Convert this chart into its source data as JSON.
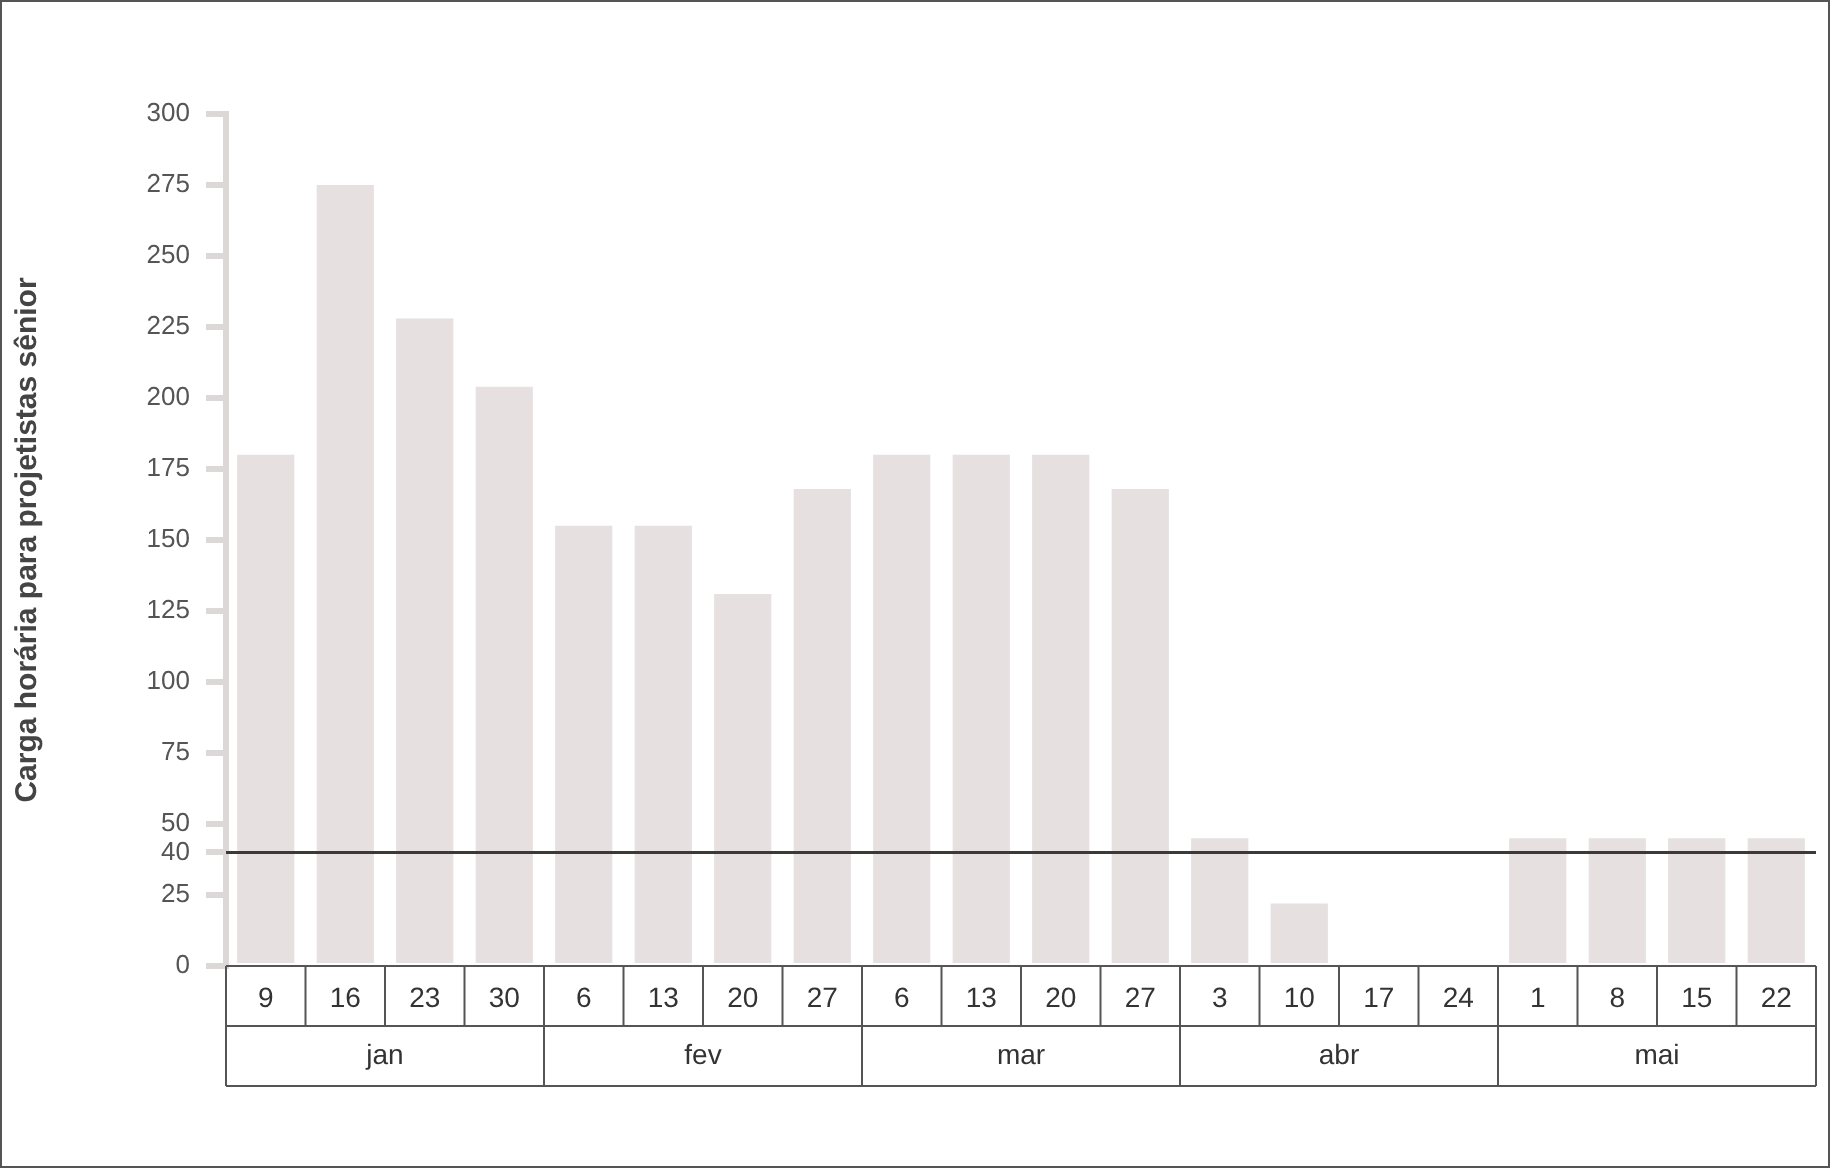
{
  "chart_data": {
    "type": "bar",
    "ylabel": "Carga horária para projetistas sênior",
    "categories": [
      "9",
      "16",
      "23",
      "30",
      "6",
      "13",
      "20",
      "27",
      "6",
      "13",
      "20",
      "27",
      "3",
      "10",
      "17",
      "24",
      "1",
      "8",
      "15",
      "22"
    ],
    "values": [
      180,
      275,
      228,
      204,
      155,
      155,
      131,
      168,
      180,
      180,
      180,
      168,
      45,
      22,
      0,
      0,
      45,
      45,
      45,
      45
    ],
    "color": "#e6e0e0",
    "ylim": [
      0,
      300
    ],
    "yticks": [
      0,
      25,
      40,
      50,
      75,
      100,
      125,
      150,
      175,
      200,
      225,
      250,
      275,
      300
    ],
    "ref_lines": [
      {
        "axis": "y",
        "value": 40,
        "label": null,
        "color": "#3a3a36"
      }
    ],
    "annotations": [
      "jan",
      "fev",
      "mar",
      "abr",
      "mai"
    ],
    "grid": false,
    "legend": false
  }
}
